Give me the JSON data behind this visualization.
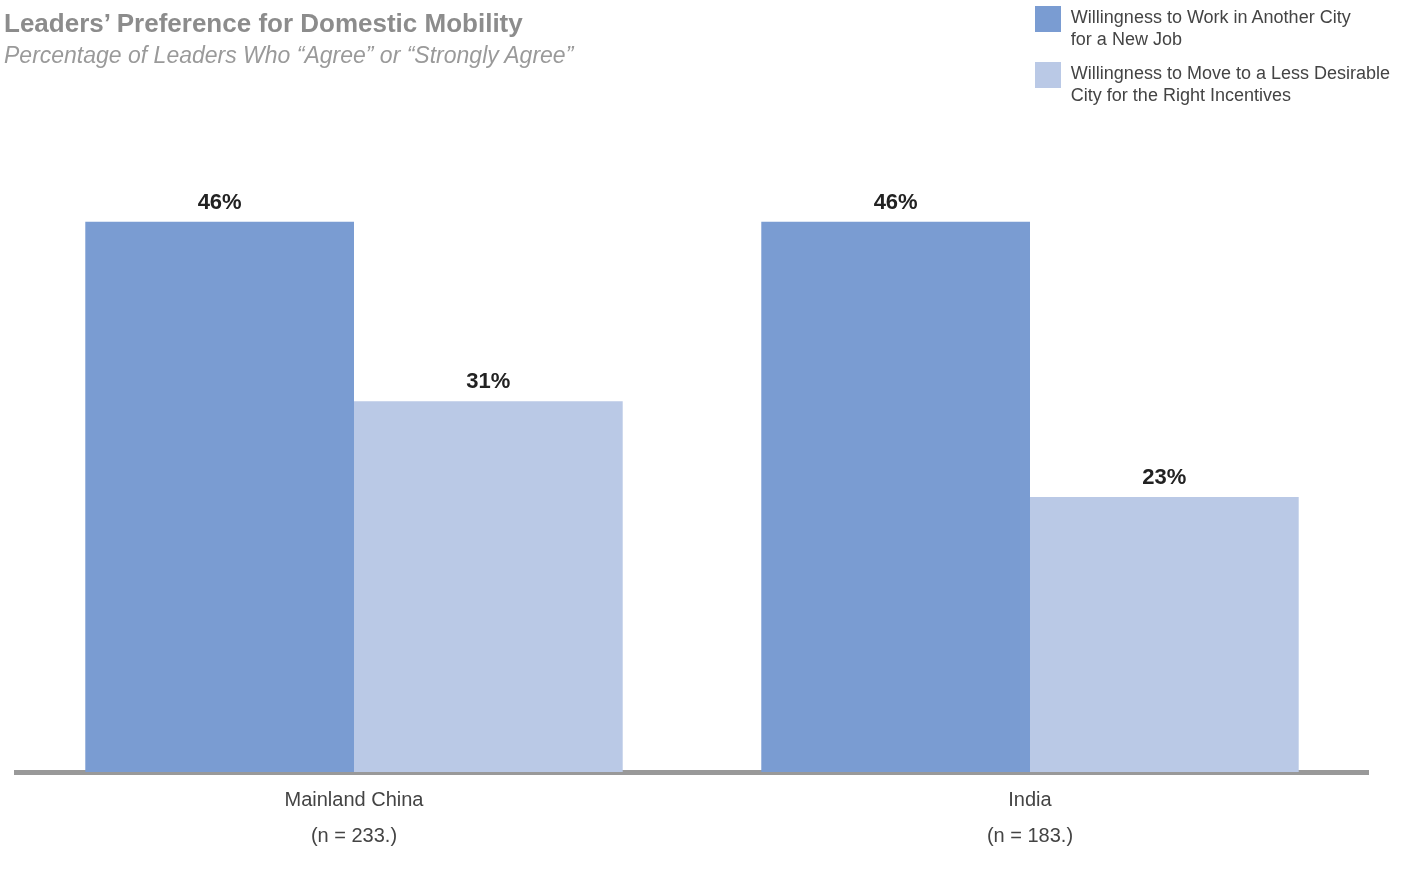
{
  "chart_data": {
    "type": "bar",
    "title": "Leaders’ Preference for Domestic Mobility",
    "subtitle": "Percentage of Leaders Who “Agree” or “Strongly Agree”",
    "categories": [
      "Mainland China\n(n = 233.)",
      "India\n(n = 183.)"
    ],
    "series": [
      {
        "name": "Willingness to Work in Another City\nfor a New Job",
        "color": "#7a9cd2",
        "values": [
          46,
          46
        ],
        "value_labels": [
          "46%",
          "46%"
        ]
      },
      {
        "name": "Willingness to Move to a Less Desirable\nCity for the Right Incentives",
        "color": "#bac9e6",
        "values": [
          31,
          23
        ],
        "value_labels": [
          "31%",
          "23%"
        ]
      }
    ],
    "tick_labels": "x",
    "grid": false,
    "legend": "top right"
  }
}
